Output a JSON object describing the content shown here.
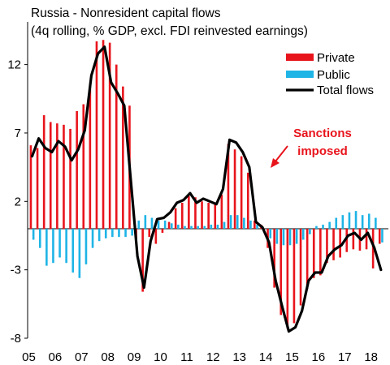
{
  "title": "Russia - Nonresident  capital flows",
  "subtitle": "(4q rolling, % GDP, excl. FDI reinvested earnings)",
  "chart_data": {
    "type": "bar",
    "ylim": [
      -8,
      15
    ],
    "y_ticks": [
      12,
      7,
      2,
      -3,
      -8
    ],
    "x_ticks": [
      "05",
      "06",
      "07",
      "08",
      "09",
      "10",
      "11",
      "12",
      "13",
      "14",
      "15",
      "16",
      "17",
      "18"
    ],
    "grid": false,
    "legend_placement": "top-right",
    "quarters_per_year": 4,
    "first_year_tick": "05",
    "series": [
      {
        "name": "Private",
        "type": "bar",
        "color": "#e8141c",
        "values": [
          6.1,
          5.9,
          8.3,
          7.8,
          7.7,
          7.6,
          7.3,
          8.6,
          9.1,
          10.6,
          13.7,
          13.8,
          13.6,
          12.0,
          10.4,
          9.0,
          -0.8,
          -4.6,
          -0.6,
          -1.1,
          -0.3,
          0.5,
          1.5,
          1.9,
          2.4,
          2.3,
          2.0,
          1.9,
          1.9,
          2.5,
          6.2,
          5.8,
          5.3,
          4.1,
          0.6,
          0.3,
          -1.4,
          -4.3,
          -6.3,
          -7.3,
          -6.9,
          -5.6,
          -4.4,
          -3.6,
          -3.4,
          -2.5,
          -2.3,
          -2.1,
          -1.7,
          -1.5,
          -1.6,
          -1.5,
          -2.9,
          -1.1
        ]
      },
      {
        "name": "Public",
        "type": "bar",
        "color": "#1eb4e6",
        "values": [
          -0.8,
          -1.4,
          -2.7,
          -2.5,
          -2.1,
          -2.5,
          -3.2,
          -3.6,
          -2.6,
          -1.4,
          -0.9,
          -0.7,
          -0.6,
          -0.6,
          -0.6,
          -0.5,
          0.6,
          1.0,
          0.8,
          0.6,
          0.6,
          0.4,
          0.3,
          0.2,
          0.2,
          0.2,
          0.2,
          0.3,
          0.3,
          0.5,
          1.0,
          1.0,
          0.8,
          0.6,
          0.3,
          0.0,
          -0.7,
          -1.1,
          -1.2,
          -1.2,
          -1.1,
          -0.8,
          -0.4,
          0.2,
          0.3,
          0.5,
          0.8,
          1.0,
          1.2,
          1.3,
          1.0,
          1.1,
          0.8,
          -1.0
        ]
      },
      {
        "name": "Total flows",
        "type": "line",
        "color": "#000000",
        "values": [
          5.3,
          6.6,
          5.9,
          5.6,
          6.4,
          6.0,
          5.0,
          5.8,
          7.2,
          11.2,
          12.8,
          13.3,
          10.7,
          9.9,
          9.0,
          3.5,
          -2.0,
          -4.3,
          -0.9,
          0.7,
          0.8,
          1.2,
          1.9,
          2.1,
          2.6,
          1.9,
          2.2,
          2.0,
          1.8,
          2.9,
          6.5,
          6.3,
          5.6,
          4.5,
          0.5,
          0.1,
          -1.0,
          -3.8,
          -5.7,
          -7.5,
          -7.2,
          -6.0,
          -3.8,
          -3.2,
          -3.2,
          -2.0,
          -1.5,
          -1.2,
          -0.5,
          -0.3,
          -0.8,
          -0.3,
          -1.4,
          -3.0
        ]
      }
    ],
    "annotation": {
      "lines": [
        "Sanctions",
        "imposed"
      ]
    }
  }
}
